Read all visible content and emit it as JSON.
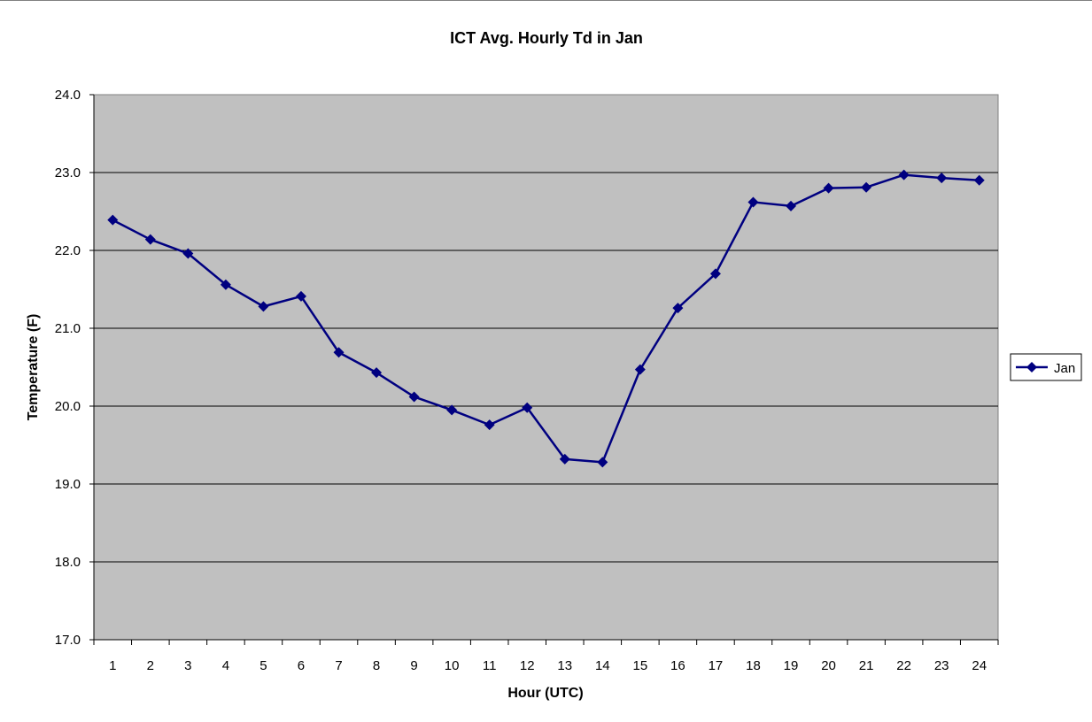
{
  "chart_data": {
    "type": "line",
    "title": "ICT Avg. Hourly Td in Jan",
    "xlabel": "Hour (UTC)",
    "ylabel": "Temperature (F)",
    "categories": [
      "1",
      "2",
      "3",
      "4",
      "5",
      "6",
      "7",
      "8",
      "9",
      "10",
      "11",
      "12",
      "13",
      "14",
      "15",
      "16",
      "17",
      "18",
      "19",
      "20",
      "21",
      "22",
      "23",
      "24"
    ],
    "ylim": [
      17.0,
      24.0
    ],
    "yticks": [
      "17.0",
      "18.0",
      "19.0",
      "20.0",
      "21.0",
      "22.0",
      "23.0",
      "24.0"
    ],
    "grid": true,
    "legend_position": "right",
    "plot_background": "#c0c0c0",
    "series": [
      {
        "name": "Jan",
        "color": "#000080",
        "marker": "diamond",
        "values": [
          22.39,
          22.14,
          21.96,
          21.56,
          21.28,
          21.41,
          20.69,
          20.43,
          20.12,
          19.95,
          19.76,
          19.98,
          19.32,
          19.28,
          20.47,
          21.26,
          21.7,
          22.62,
          22.57,
          22.8,
          22.81,
          22.97,
          22.93,
          22.9
        ]
      }
    ]
  }
}
